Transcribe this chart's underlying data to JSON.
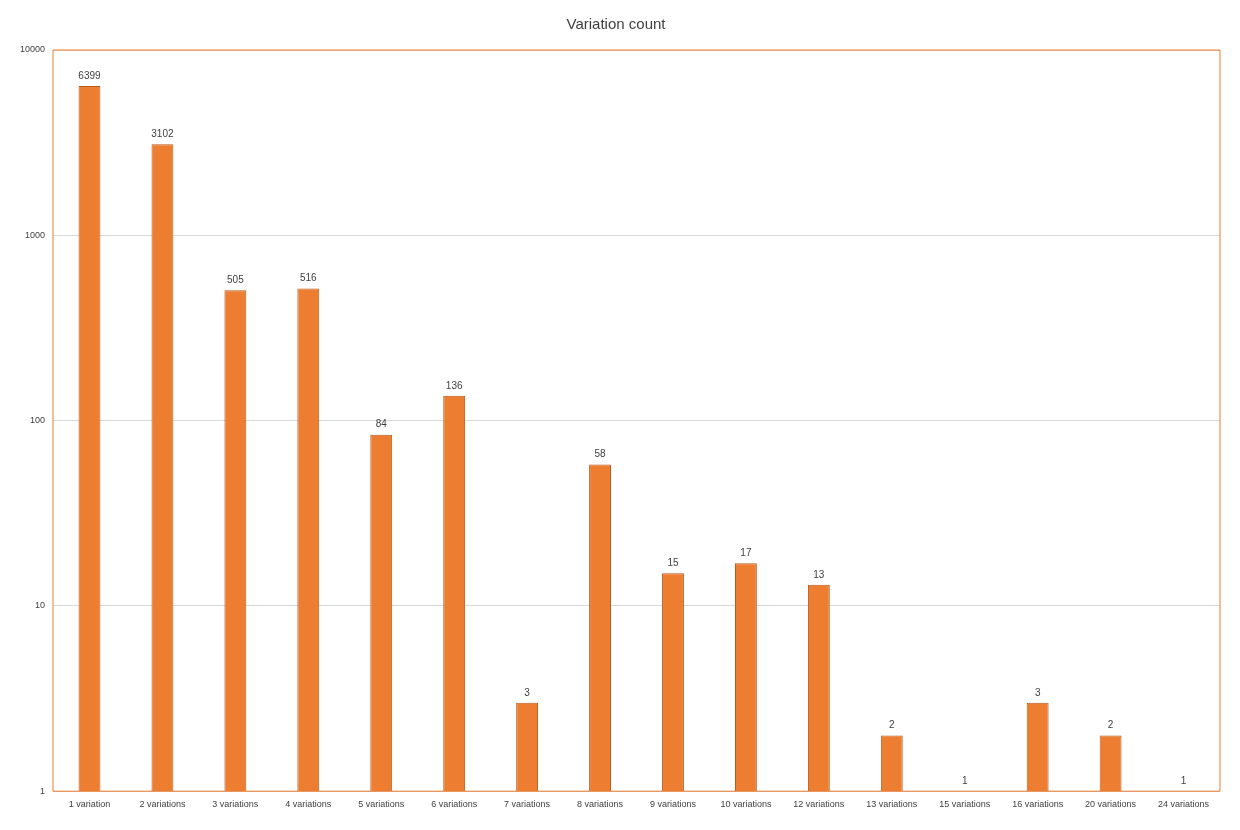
{
  "chart_data": {
    "type": "bar",
    "title": "Variation count",
    "categories": [
      "1 variation",
      "2 variations",
      "3 variations",
      "4 variations",
      "5 variations",
      "6 variations",
      "7 variations",
      "8 variations",
      "9 variations",
      "10 variations",
      "12 variations",
      "13 variations",
      "15 variations",
      "16 variations",
      "20 variations",
      "24 variations"
    ],
    "values": [
      6399,
      3102,
      505,
      516,
      84,
      136,
      3,
      58,
      15,
      17,
      13,
      2,
      1,
      3,
      2,
      1
    ],
    "color": "#ed7d31",
    "log": true,
    "ylim": [
      1,
      10000
    ],
    "yticks": [
      1,
      10,
      100,
      1000,
      10000
    ],
    "grid": "y",
    "data_labels": true,
    "legend": false
  }
}
